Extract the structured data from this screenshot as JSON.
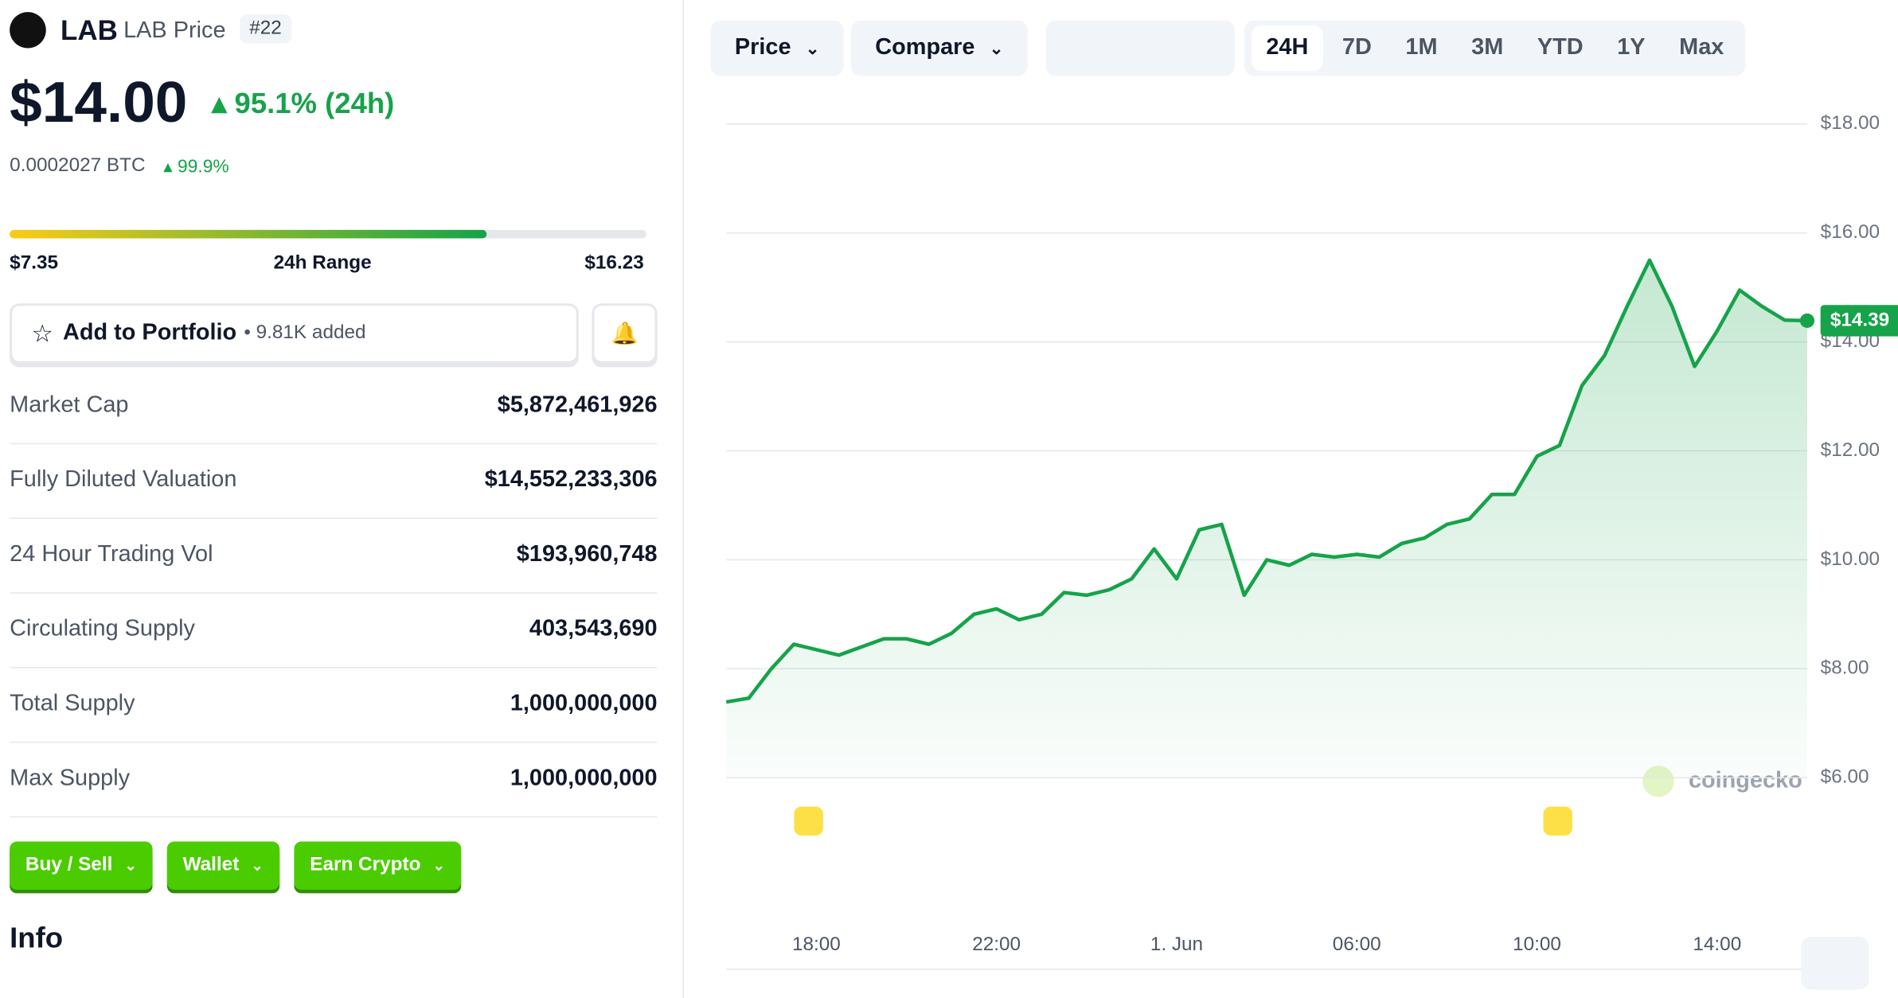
{
  "header": {
    "symbol": "LAB",
    "name": "LAB Price",
    "rank": "#22",
    "price": {
      "value": 14,
      "label": "$14.00"
    },
    "change": "95.1% (24h)",
    "btc_price": "0.0002027 BTC",
    "btc_change": "99.9%"
  },
  "range": {
    "low": {
      "value": 7.35,
      "label": "$7.35"
    },
    "label": "24h Range",
    "high": {
      "value": 16.23,
      "label": "$16.23"
    }
  },
  "portfolio": {
    "button": "Add to Portfolio",
    "added": "• 9.81K added"
  },
  "stats": [
    {
      "label": "Market Cap",
      "value": "$5,872,461,926"
    },
    {
      "label": "Fully Diluted Valuation",
      "value": "$14,552,233,306"
    },
    {
      "label": "24 Hour Trading Vol",
      "value": "$193,960,748"
    },
    {
      "label": "Circulating Supply",
      "value": "403,543,690"
    },
    {
      "label": "Total Supply",
      "value": "1,000,000,000"
    },
    {
      "label": "Max Supply",
      "value": "1,000,000,000"
    }
  ],
  "actions": [
    "Buy / Sell",
    "Wallet",
    "Earn Crypto"
  ],
  "info_heading": "Info",
  "toolbar": {
    "menus": [
      "Price",
      "Compare"
    ],
    "periods": [
      "24H",
      "7D",
      "1M",
      "3M",
      "YTD",
      "1Y",
      "Max"
    ]
  },
  "watermark": "coingecko",
  "chart_data": {
    "type": "line",
    "color": "#16a34a",
    "categories": [
      null,
      null,
      null,
      null,
      "18:00",
      null,
      null,
      null,
      null,
      null,
      null,
      null,
      "22:00",
      null,
      null,
      null,
      null,
      null,
      null,
      null,
      "1. Jun",
      null,
      null,
      null,
      null,
      null,
      null,
      null,
      "06:00",
      null,
      null,
      null,
      null,
      null,
      null,
      null,
      "10:00",
      null,
      null,
      null,
      null,
      null,
      null,
      null,
      "14:00",
      null,
      null,
      null,
      null
    ],
    "values": [
      7.39,
      7.46,
      8.0,
      8.45,
      8.35,
      8.25,
      8.4,
      8.55,
      8.55,
      8.45,
      8.65,
      9.0,
      9.1,
      8.9,
      9.0,
      9.4,
      9.35,
      9.45,
      9.65,
      10.2,
      9.65,
      10.55,
      10.65,
      9.35,
      10.0,
      9.9,
      10.1,
      10.05,
      10.1,
      10.05,
      10.3,
      10.4,
      10.65,
      10.75,
      11.2,
      11.2,
      11.9,
      12.1,
      13.2,
      13.75,
      14.65,
      15.5,
      14.65,
      13.55,
      14.2,
      14.95,
      14.65,
      14.4,
      14.39
    ],
    "last_label": "$14.39",
    "ylim": [
      6,
      18
    ],
    "yticks": [
      {
        "value": 6,
        "label": "$6.00"
      },
      {
        "value": 8,
        "label": "$8.00"
      },
      {
        "value": 10,
        "label": "$10.00"
      },
      {
        "value": 12,
        "label": "$12.00"
      },
      {
        "value": 14,
        "label": "$14.00"
      },
      {
        "value": 16,
        "label": "$16.00"
      },
      {
        "value": 18,
        "label": "$18.00"
      }
    ],
    "grid": true
  }
}
